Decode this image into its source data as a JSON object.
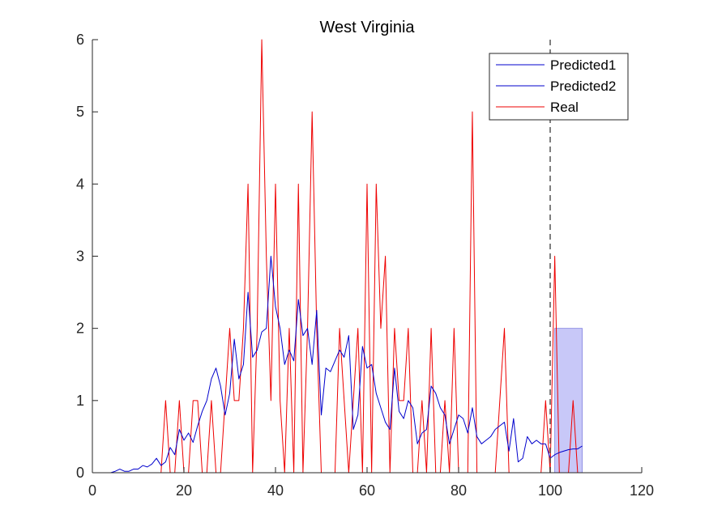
{
  "chart_data": {
    "type": "line",
    "title": "West Virginia",
    "xlabel": "",
    "ylabel": "",
    "xlim": [
      0,
      120
    ],
    "ylim": [
      0,
      6
    ],
    "x_ticks": [
      0,
      20,
      40,
      60,
      80,
      100,
      120
    ],
    "y_ticks": [
      0,
      1,
      2,
      3,
      4,
      5,
      6
    ],
    "grid": false,
    "legend_position": "top-right",
    "forecast_start_x": 100,
    "shaded_band": {
      "x_start": 101,
      "x_end": 107,
      "y_low": 0,
      "y_high": 2,
      "color": "#c8c8f8"
    },
    "series": [
      {
        "name": "Predicted1",
        "color": "#0000cc",
        "x": [
          1,
          2,
          3,
          4,
          5,
          6,
          7,
          8,
          9,
          10,
          11,
          12,
          13,
          14,
          15,
          16,
          17,
          18,
          19,
          20,
          21,
          22,
          23,
          24,
          25,
          26,
          27,
          28,
          29,
          30,
          31,
          32,
          33,
          34,
          35,
          36,
          37,
          38,
          39,
          40,
          41,
          42,
          43,
          44,
          45,
          46,
          47,
          48,
          49,
          50,
          51,
          52,
          53,
          54,
          55,
          56,
          57,
          58,
          59,
          60,
          61,
          62,
          63,
          64,
          65,
          66,
          67,
          68,
          69,
          70,
          71,
          72,
          73,
          74,
          75,
          76,
          77,
          78,
          79,
          80,
          81,
          82,
          83,
          84,
          85,
          86,
          87,
          88,
          89,
          90,
          91,
          92,
          93,
          94,
          95,
          96,
          97,
          98,
          99
        ],
        "y": [
          0,
          0,
          0,
          0,
          0.02,
          0.05,
          0.02,
          0.02,
          0.05,
          0.05,
          0.1,
          0.08,
          0.12,
          0.2,
          0.1,
          0.15,
          0.35,
          0.25,
          0.6,
          0.45,
          0.55,
          0.42,
          0.65,
          0.85,
          1.0,
          1.3,
          1.45,
          1.2,
          0.8,
          1.1,
          1.85,
          1.3,
          1.5,
          2.5,
          1.6,
          1.7,
          1.95,
          2.0,
          3.0,
          2.3,
          2.0,
          1.5,
          1.7,
          1.55,
          2.4,
          1.9,
          2.0,
          1.5,
          2.25,
          0.8,
          1.45,
          1.4,
          1.55,
          1.7,
          1.6,
          1.9,
          0.6,
          0.8,
          1.75,
          1.45,
          1.5,
          1.1,
          0.9,
          0.7,
          0.6,
          1.45,
          0.85,
          0.75,
          1.0,
          0.9,
          0.4,
          0.55,
          0.6,
          1.2,
          1.1,
          0.9,
          0.8,
          0.4,
          0.6,
          0.8,
          0.75,
          0.55,
          0.9,
          0.5,
          0.4,
          0.45,
          0.5,
          0.6,
          0.65,
          0.7,
          0.3,
          0.75,
          0.15,
          0.2,
          0.5,
          0.4,
          0.45,
          0.4,
          0.4
        ]
      },
      {
        "name": "Predicted2",
        "color": "#0000cc",
        "x": [
          99,
          100,
          101,
          102,
          103,
          104,
          105,
          106,
          107
        ],
        "y": [
          0.4,
          0.2,
          0.25,
          0.28,
          0.3,
          0.32,
          0.33,
          0.33,
          0.37
        ]
      },
      {
        "name": "Real",
        "color": "#ee0000",
        "x": [
          1,
          2,
          3,
          4,
          5,
          6,
          7,
          8,
          9,
          10,
          11,
          12,
          13,
          14,
          15,
          16,
          17,
          18,
          19,
          20,
          21,
          22,
          23,
          24,
          25,
          26,
          27,
          28,
          29,
          30,
          31,
          32,
          33,
          34,
          35,
          36,
          37,
          38,
          39,
          40,
          41,
          42,
          43,
          44,
          45,
          46,
          47,
          48,
          49,
          50,
          51,
          52,
          53,
          54,
          55,
          56,
          57,
          58,
          59,
          60,
          61,
          62,
          63,
          64,
          65,
          66,
          67,
          68,
          69,
          70,
          71,
          72,
          73,
          74,
          75,
          76,
          77,
          78,
          79,
          80,
          81,
          82,
          83,
          84,
          85,
          86,
          87,
          88,
          89,
          90,
          91,
          92,
          93,
          94,
          95,
          96,
          97,
          98,
          99,
          100,
          101,
          102,
          103,
          104,
          105,
          106,
          107
        ],
        "y": [
          0,
          0,
          0,
          0,
          0,
          0,
          0,
          0,
          0,
          0,
          0,
          0,
          0,
          0,
          0,
          1,
          0,
          0,
          1,
          0,
          0,
          1,
          1,
          0,
          0,
          1,
          0,
          0,
          1,
          2,
          1,
          1,
          2,
          4,
          0,
          2,
          6,
          3,
          1,
          4,
          1,
          0,
          2,
          0,
          4,
          0,
          2,
          5,
          2,
          0,
          0,
          0,
          0,
          2,
          1,
          0,
          1,
          2,
          0,
          4,
          0,
          4,
          2,
          3,
          0,
          2,
          1,
          1,
          2,
          0,
          0,
          1,
          0,
          2,
          0,
          0,
          1,
          0,
          2,
          0,
          0,
          0,
          5,
          0,
          0,
          0,
          0,
          0,
          1,
          2,
          0,
          0,
          0,
          0,
          0,
          0,
          0,
          0,
          1,
          0,
          3,
          0,
          0,
          0,
          1,
          0,
          0
        ]
      }
    ]
  }
}
